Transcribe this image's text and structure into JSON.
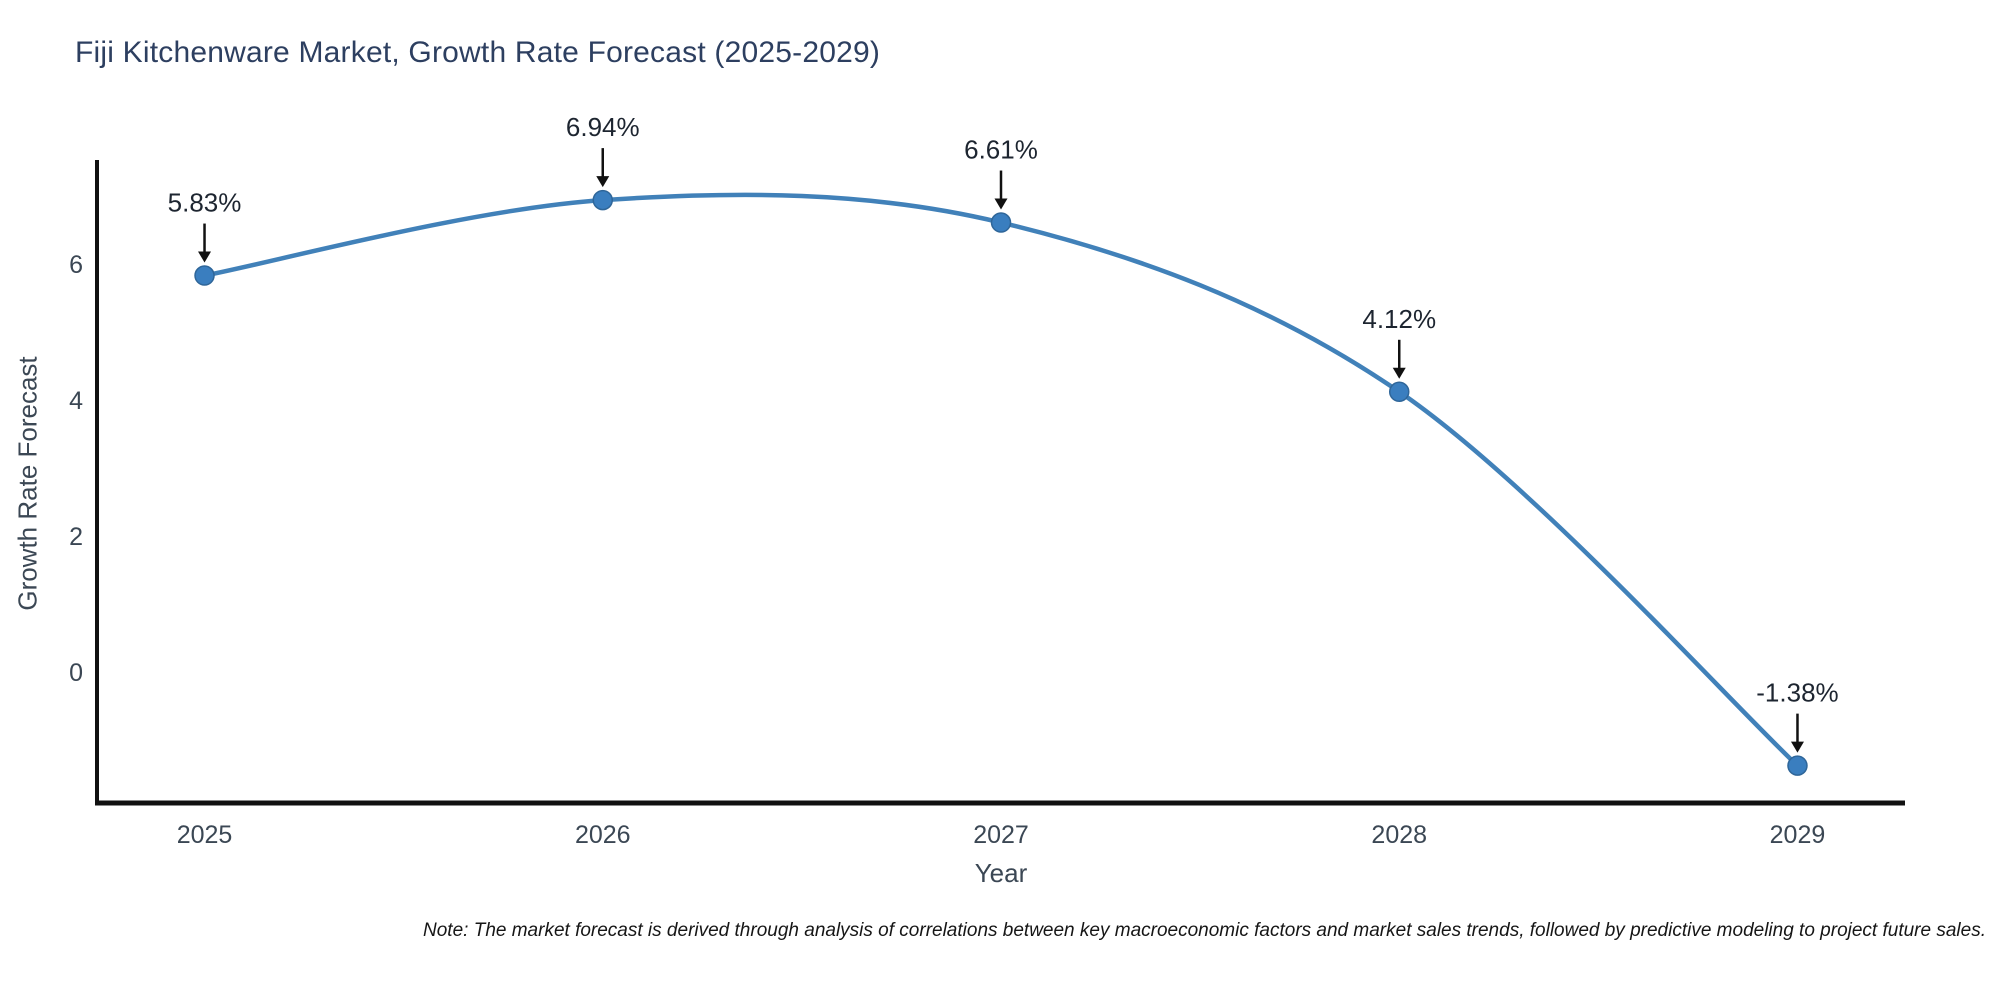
{
  "header": {
    "title": "Fiji Kitchenware Market, Growth Rate Forecast (2025-2029)"
  },
  "footnote": "Note: The market forecast is derived through analysis of correlations between key macroeconomic factors and market sales trends, followed by predictive modeling to project future sales.",
  "chart_data": {
    "type": "line",
    "title": "Fiji Kitchenware Market, Growth Rate Forecast (2025-2029)",
    "xlabel": "Year",
    "ylabel": "Growth Rate Forecast",
    "x": [
      2025,
      2026,
      2027,
      2028,
      2029
    ],
    "values": [
      5.83,
      6.94,
      6.61,
      4.12,
      -1.38
    ],
    "point_labels": [
      "5.83%",
      "6.94%",
      "6.61%",
      "4.12%",
      "-1.38%"
    ],
    "xticks": [
      "2025",
      "2026",
      "2027",
      "2028",
      "2029"
    ],
    "yticks": [
      0,
      2,
      4,
      6
    ],
    "xlim": [
      2024.73,
      2029.27
    ],
    "ylim": [
      -1.93,
      7.53
    ],
    "grid": false,
    "legend": "none",
    "curve": "spline",
    "line_color": "#4181b9",
    "marker_color": "#3a7ebf",
    "marker_edge_color": "#2f6699",
    "annotation_color": "#111111",
    "axis_line_color": "#111111",
    "tick_text_color": "#3b4754"
  }
}
